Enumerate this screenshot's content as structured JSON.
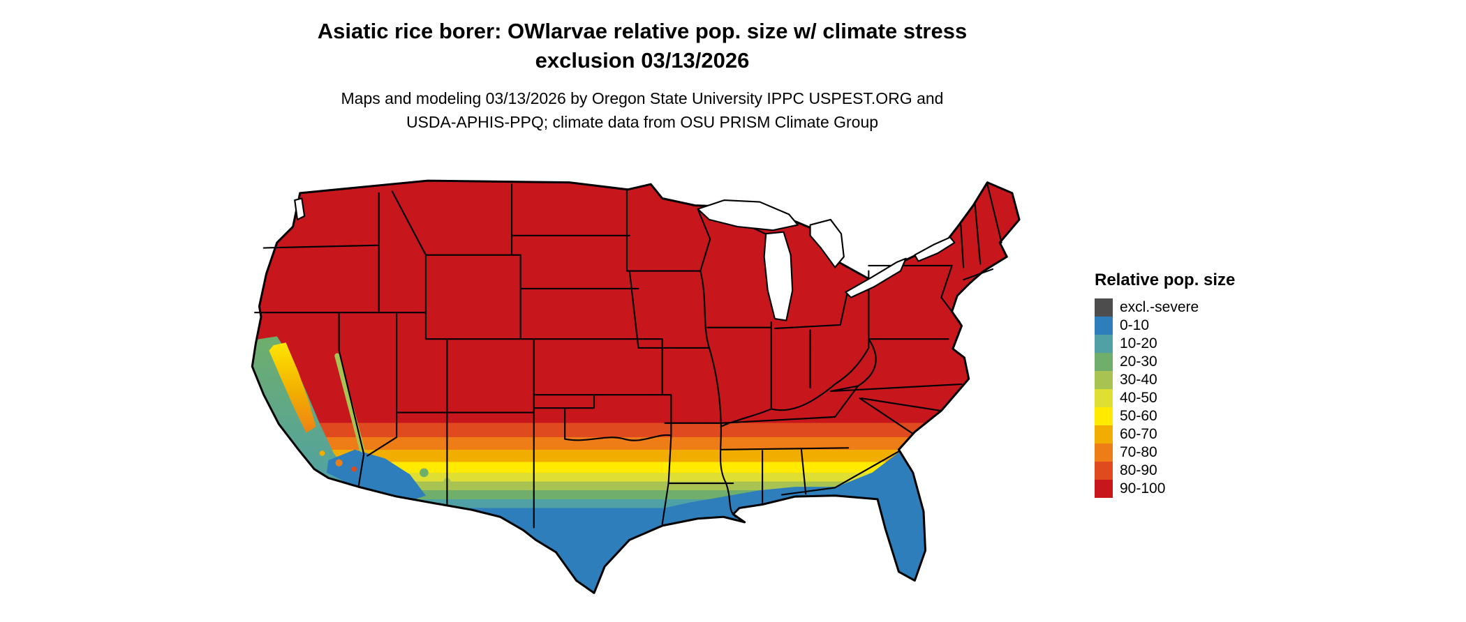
{
  "header": {
    "title_line1": "Asiatic rice borer: OWlarvae relative pop. size w/ climate stress",
    "title_line2": "exclusion 03/13/2026",
    "subtitle_line1": "Maps and modeling 03/13/2026 by Oregon State University IPPC USPEST.ORG and",
    "subtitle_line2": "USDA-APHIS-PPQ; climate data from OSU PRISM Climate Group"
  },
  "legend": {
    "title": "Relative pop. size",
    "items": [
      {
        "label": "excl.-severe",
        "color": "#4d4d4d"
      },
      {
        "label": "0-10",
        "color": "#2e7ebc"
      },
      {
        "label": "10-20",
        "color": "#4fa1a6"
      },
      {
        "label": "20-30",
        "color": "#6fae6b"
      },
      {
        "label": "30-40",
        "color": "#a9c352"
      },
      {
        "label": "40-50",
        "color": "#dede33"
      },
      {
        "label": "50-60",
        "color": "#ffea00"
      },
      {
        "label": "60-70",
        "color": "#f2ae00"
      },
      {
        "label": "70-80",
        "color": "#ee7d18"
      },
      {
        "label": "80-90",
        "color": "#df4a1f"
      },
      {
        "label": "90-100",
        "color": "#c8161d"
      }
    ]
  },
  "map": {
    "region": "Continental United States",
    "type": "raster choropleth of relative population size with state borders"
  }
}
